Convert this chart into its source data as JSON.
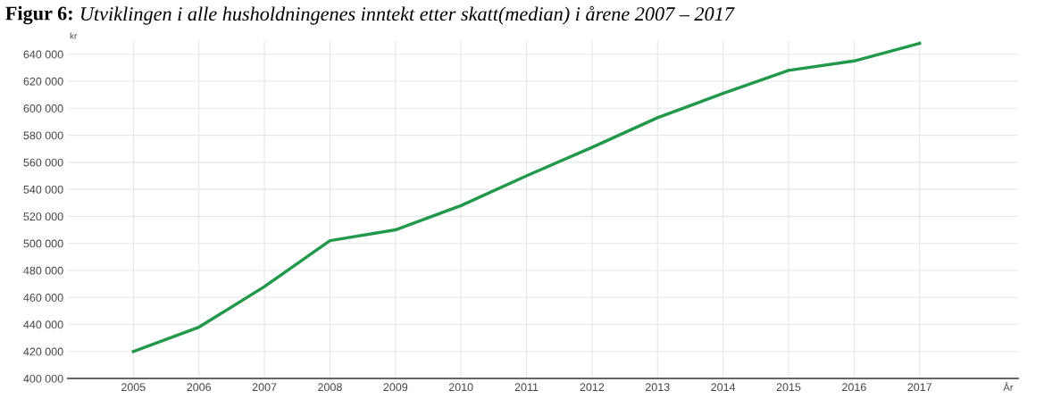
{
  "chart_data": {
    "type": "line",
    "title": "Figur 6:",
    "subtitle": "Utviklingen i alle husholdningenes inntekt etter skatt(median) i årene 2007 – 2017",
    "ylabel": "kr",
    "annotations": [
      "År"
    ],
    "categories": [
      "2005",
      "2006",
      "2007",
      "2008",
      "2009",
      "2010",
      "2011",
      "2012",
      "2013",
      "2014",
      "2015",
      "2016",
      "2017"
    ],
    "series": [
      {
        "color": "#22994a",
        "values": [
          420000,
          438000,
          468000,
          502000,
          510000,
          528000,
          550000,
          571000,
          593000,
          611000,
          628000,
          635000,
          648000
        ]
      }
    ],
    "ylim": [
      400000,
      650000
    ],
    "yticks": [
      {
        "value": 400000,
        "label": "400 000"
      },
      {
        "value": 420000,
        "label": "420 000"
      },
      {
        "value": 440000,
        "label": "440 000"
      },
      {
        "value": 460000,
        "label": "460 000"
      },
      {
        "value": 480000,
        "label": "480 000"
      },
      {
        "value": 500000,
        "label": "500 000"
      },
      {
        "value": 520000,
        "label": "520 000"
      },
      {
        "value": 540000,
        "label": "540 000"
      },
      {
        "value": 560000,
        "label": "560 000"
      },
      {
        "value": 580000,
        "label": "580 000"
      },
      {
        "value": 600000,
        "label": "600 000"
      },
      {
        "value": 620000,
        "label": "620 000"
      },
      {
        "value": 640000,
        "label": "640 000"
      }
    ],
    "grid": true,
    "marker": "none",
    "line_style": "solid"
  }
}
